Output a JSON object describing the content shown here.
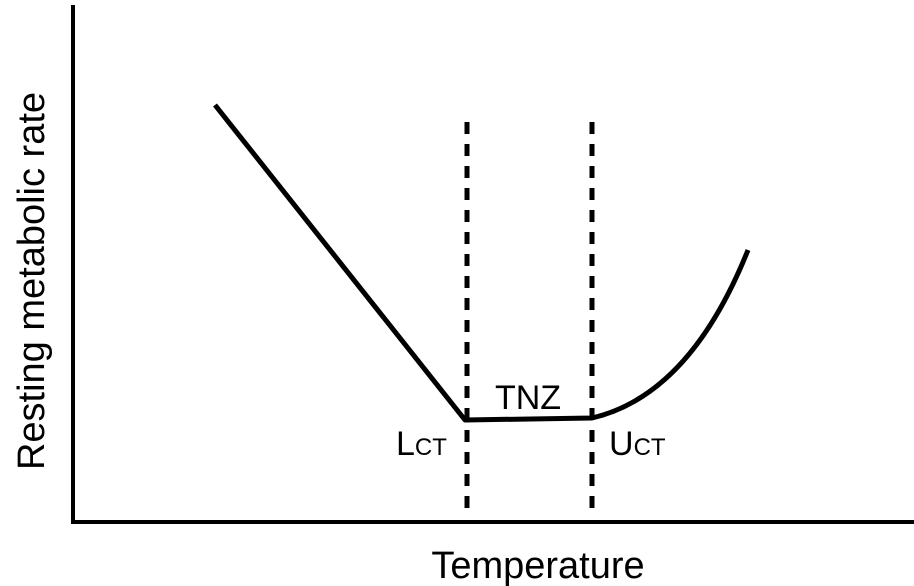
{
  "axes": {
    "x_label": "Temperature",
    "y_label": "Resting metabolic rate"
  },
  "annotations": {
    "zone": "TNZ",
    "lower": {
      "main": "L",
      "sub": "CT"
    },
    "upper": {
      "main": "U",
      "sub": "CT"
    }
  }
}
